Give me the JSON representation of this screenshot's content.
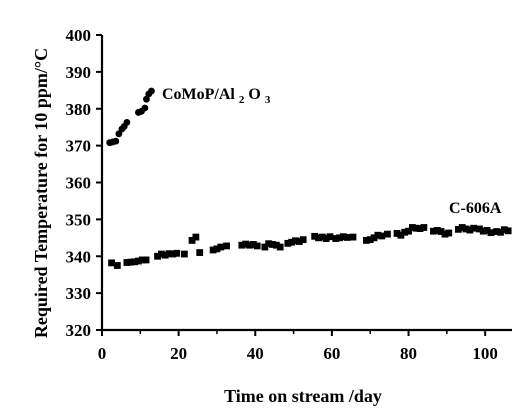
{
  "chart_data": {
    "type": "scatter",
    "xlabel": "Time on stream /day",
    "ylabel": "Required Temperature for 10 ppm/°C",
    "xlim": [
      0,
      107
    ],
    "ylim": [
      320,
      400
    ],
    "xticks": [
      "0",
      "20",
      "40",
      "60",
      "80",
      "100"
    ],
    "yticks": [
      "320",
      "330",
      "340",
      "350",
      "360",
      "370",
      "380",
      "390",
      "400"
    ],
    "grid": false,
    "legend": "none",
    "annotations": [
      {
        "series": "CoMoP/Al2O3",
        "text_main": "CoMoP/Al",
        "text_sub1": "2",
        "text_mid": "O",
        "text_sub2": "3"
      },
      {
        "series": "C-606A",
        "text_main": "C-606A"
      }
    ],
    "series": [
      {
        "name": "CoMoP/Al2O3",
        "marker": "circle",
        "color": "#000000",
        "points": [
          [
            2.0,
            370.8
          ],
          [
            2.8,
            371.0
          ],
          [
            3.6,
            371.2
          ],
          [
            4.4,
            373.2
          ],
          [
            5.2,
            374.5
          ],
          [
            5.8,
            375.2
          ],
          [
            6.5,
            376.3
          ],
          [
            9.5,
            379.0
          ],
          [
            10.3,
            379.3
          ],
          [
            11.2,
            380.2
          ],
          [
            11.6,
            382.6
          ],
          [
            12.2,
            384.0
          ],
          [
            12.9,
            384.8
          ]
        ]
      },
      {
        "name": "C-606A",
        "marker": "square",
        "color": "#000000",
        "points": [
          [
            2.5,
            338.2
          ],
          [
            4.0,
            337.5
          ],
          [
            6.5,
            338.3
          ],
          [
            7.5,
            338.4
          ],
          [
            8.5,
            338.5
          ],
          [
            9.5,
            338.7
          ],
          [
            10.5,
            339.0
          ],
          [
            11.5,
            339.0
          ],
          [
            14.5,
            340.0
          ],
          [
            15.5,
            340.6
          ],
          [
            16.5,
            340.3
          ],
          [
            17.5,
            340.7
          ],
          [
            18.5,
            340.6
          ],
          [
            19.5,
            340.8
          ],
          [
            21.5,
            340.6
          ],
          [
            23.5,
            344.3
          ],
          [
            24.5,
            345.2
          ],
          [
            25.5,
            341.0
          ],
          [
            29.0,
            341.7
          ],
          [
            30.0,
            342.0
          ],
          [
            31.0,
            342.5
          ],
          [
            32.5,
            342.8
          ],
          [
            36.5,
            343.0
          ],
          [
            37.5,
            343.3
          ],
          [
            38.5,
            343.0
          ],
          [
            39.5,
            343.2
          ],
          [
            40.5,
            342.8
          ],
          [
            42.5,
            342.5
          ],
          [
            43.5,
            343.4
          ],
          [
            44.5,
            343.2
          ],
          [
            45.5,
            343.0
          ],
          [
            46.5,
            342.5
          ],
          [
            48.5,
            343.5
          ],
          [
            49.5,
            343.8
          ],
          [
            50.5,
            344.2
          ],
          [
            51.5,
            344.0
          ],
          [
            52.5,
            344.5
          ],
          [
            55.5,
            345.4
          ],
          [
            56.5,
            345.0
          ],
          [
            57.5,
            345.2
          ],
          [
            58.5,
            344.8
          ],
          [
            59.5,
            345.3
          ],
          [
            61.0,
            344.8
          ],
          [
            62.0,
            345.0
          ],
          [
            63.0,
            345.3
          ],
          [
            64.0,
            345.1
          ],
          [
            65.5,
            345.2
          ],
          [
            69.0,
            344.3
          ],
          [
            70.0,
            344.5
          ],
          [
            71.0,
            345.0
          ],
          [
            72.0,
            345.7
          ],
          [
            73.0,
            345.5
          ],
          [
            74.5,
            346.0
          ],
          [
            77.0,
            346.2
          ],
          [
            78.0,
            345.7
          ],
          [
            79.0,
            346.5
          ],
          [
            80.0,
            346.8
          ],
          [
            81.0,
            347.8
          ],
          [
            82.0,
            347.6
          ],
          [
            83.0,
            347.5
          ],
          [
            84.0,
            347.8
          ],
          [
            86.5,
            346.8
          ],
          [
            87.5,
            347.0
          ],
          [
            88.5,
            346.7
          ],
          [
            89.5,
            346.0
          ],
          [
            90.5,
            346.3
          ],
          [
            93.0,
            347.3
          ],
          [
            94.0,
            347.8
          ],
          [
            95.0,
            347.4
          ],
          [
            96.0,
            347.1
          ],
          [
            97.0,
            347.6
          ],
          [
            98.5,
            347.4
          ],
          [
            99.5,
            346.8
          ],
          [
            100.5,
            347.0
          ],
          [
            101.5,
            346.4
          ],
          [
            103.0,
            346.7
          ],
          [
            104.0,
            346.5
          ],
          [
            105.0,
            347.2
          ],
          [
            106.0,
            346.9
          ]
        ]
      }
    ]
  }
}
